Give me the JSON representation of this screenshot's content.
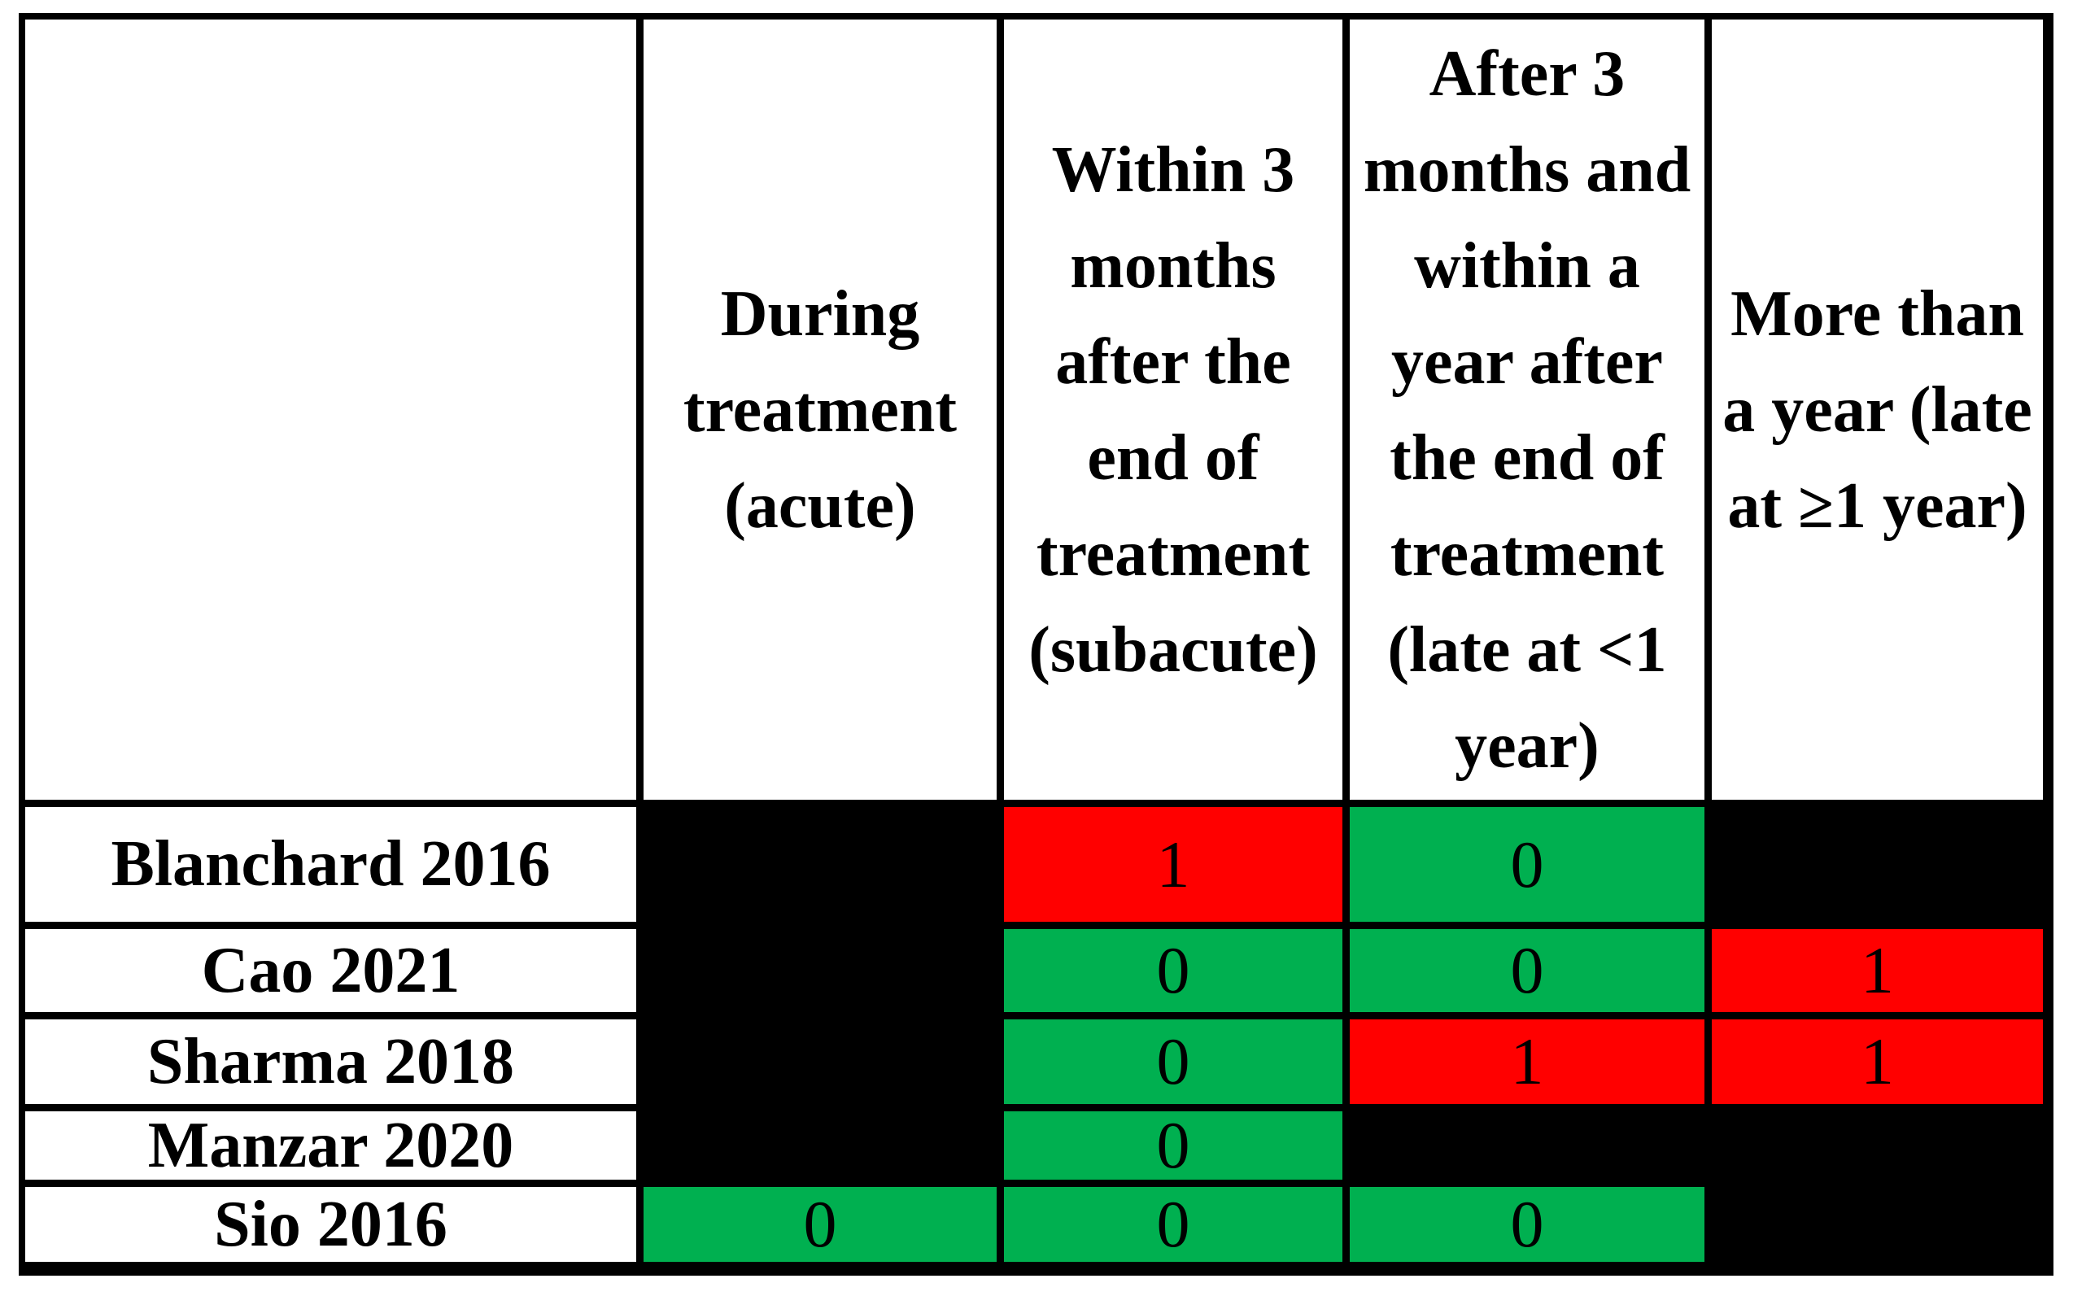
{
  "colors": {
    "event_present": "#FF0000",
    "event_absent": "#00B050",
    "no_data": "#000000",
    "grid_line": "#000000",
    "cell_text": "#000000"
  },
  "header": {
    "col0": "",
    "col1": "During\ntreatment\n(acute)",
    "col2": "Within 3\nmonths\nafter the\nend of\ntreatment\n(subacute)",
    "col3": "After 3\nmonths and\nwithin a\nyear after\nthe end of\ntreatment\n(late at <1\nyear)",
    "col4": "More than\na year (late\nat ≥1 year)"
  },
  "rows": [
    {
      "label": "Blanchard 2016",
      "cells": [
        {
          "value": "",
          "bg": "#000000"
        },
        {
          "value": "1",
          "bg": "#FF0000"
        },
        {
          "value": "0",
          "bg": "#00B050"
        },
        {
          "value": "",
          "bg": "#000000"
        }
      ]
    },
    {
      "label": "Cao 2021",
      "cells": [
        {
          "value": "",
          "bg": "#000000"
        },
        {
          "value": "0",
          "bg": "#00B050"
        },
        {
          "value": "0",
          "bg": "#00B050"
        },
        {
          "value": "1",
          "bg": "#FF0000"
        }
      ]
    },
    {
      "label": "Sharma 2018",
      "cells": [
        {
          "value": "",
          "bg": "#000000"
        },
        {
          "value": "0",
          "bg": "#00B050"
        },
        {
          "value": "1",
          "bg": "#FF0000"
        },
        {
          "value": "1",
          "bg": "#FF0000"
        }
      ]
    },
    {
      "label": "Manzar 2020",
      "cells": [
        {
          "value": "",
          "bg": "#000000"
        },
        {
          "value": "0",
          "bg": "#00B050"
        },
        {
          "value": "",
          "bg": "#000000"
        },
        {
          "value": "",
          "bg": "#000000"
        }
      ]
    },
    {
      "label": "Sio 2016",
      "cells": [
        {
          "value": "0",
          "bg": "#00B050"
        },
        {
          "value": "0",
          "bg": "#00B050"
        },
        {
          "value": "0",
          "bg": "#00B050"
        },
        {
          "value": "",
          "bg": "#000000"
        }
      ]
    }
  ],
  "chart_data": {
    "type": "table",
    "columns": [
      "",
      "During treatment (acute)",
      "Within 3 months after the end of treatment (subacute)",
      "After 3 months and within a year after the end of treatment (late at <1 year)",
      "More than a year (late at ≥1 year)"
    ],
    "rows": [
      {
        "study": "Blanchard 2016",
        "values": [
          null,
          1,
          0,
          null
        ]
      },
      {
        "study": "Cao 2021",
        "values": [
          null,
          0,
          0,
          1
        ]
      },
      {
        "study": "Sharma 2018",
        "values": [
          null,
          0,
          1,
          1
        ]
      },
      {
        "study": "Manzar 2020",
        "values": [
          null,
          0,
          null,
          null
        ]
      },
      {
        "study": "Sio 2016",
        "values": [
          0,
          0,
          0,
          null
        ]
      }
    ],
    "value_colors": {
      "1": "#FF0000",
      "0": "#00B050",
      "no_data": "#000000"
    },
    "grid": true,
    "legend_position": "none"
  }
}
